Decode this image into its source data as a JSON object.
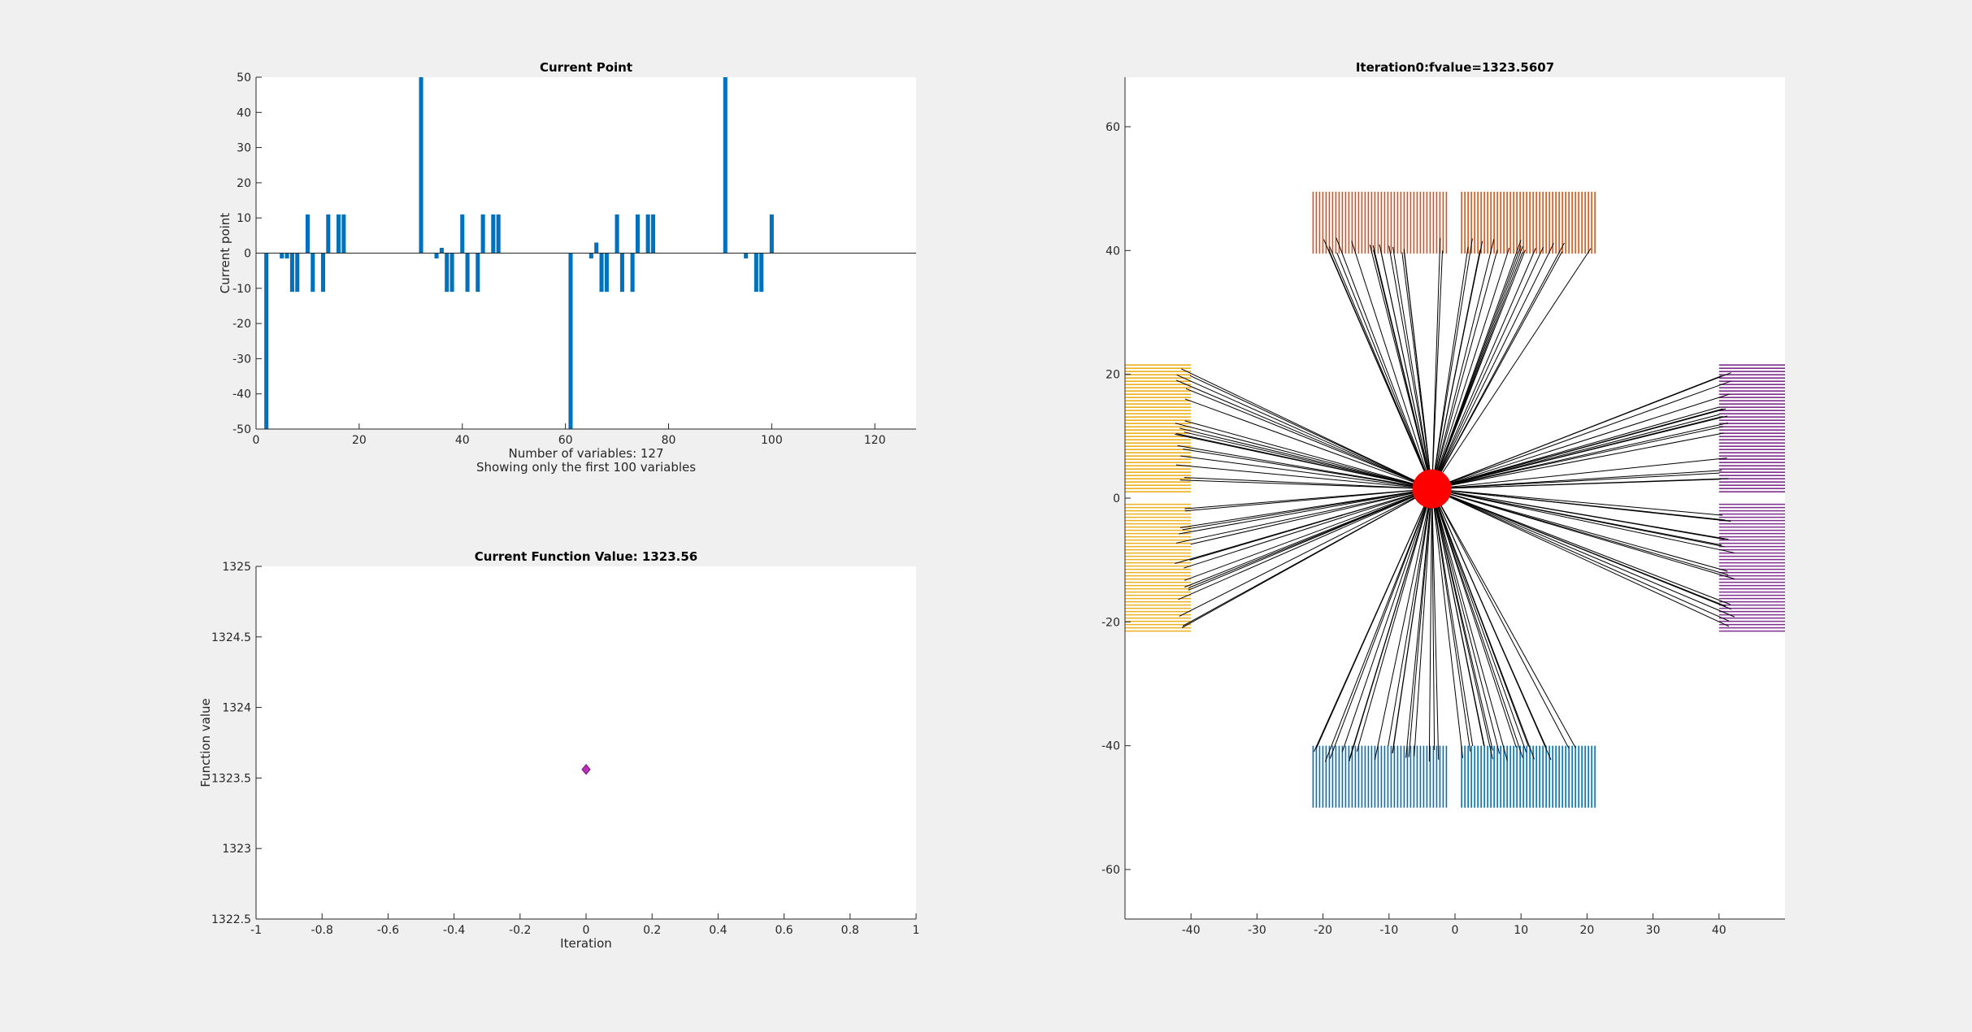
{
  "colors": {
    "bar": "#0072BD",
    "orange": "#D95319",
    "yellow": "#EDB120",
    "purple": "#7E2F8E",
    "blue": "#0072BD",
    "center": "#FF0000",
    "marker": "#BD2EBD"
  },
  "chart_data": [
    {
      "type": "bar",
      "title": "Current Point",
      "xlabel": "Number of variables: 127",
      "xlabel2": "Showing only the first 100 variables",
      "ylabel": "Current point",
      "xlim": [
        0,
        128
      ],
      "ylim": [
        -50,
        50
      ],
      "xticks": [
        0,
        20,
        40,
        60,
        80,
        100,
        120
      ],
      "yticks": [
        -50,
        -40,
        -30,
        -20,
        -10,
        0,
        10,
        20,
        30,
        40,
        50
      ],
      "x": [
        1,
        2,
        3,
        4,
        5,
        6,
        7,
        8,
        9,
        10,
        11,
        12,
        13,
        14,
        15,
        16,
        17,
        18,
        19,
        20,
        21,
        22,
        23,
        24,
        25,
        26,
        27,
        28,
        29,
        30,
        31,
        32,
        33,
        34,
        35,
        36,
        37,
        38,
        39,
        40,
        41,
        42,
        43,
        44,
        45,
        46,
        47,
        48,
        49,
        50,
        51,
        52,
        53,
        54,
        55,
        56,
        57,
        58,
        59,
        60,
        61,
        62,
        63,
        64,
        65,
        66,
        67,
        68,
        69,
        70,
        71,
        72,
        73,
        74,
        75,
        76,
        77,
        78,
        79,
        80,
        81,
        82,
        83,
        84,
        85,
        86,
        87,
        88,
        89,
        90,
        91,
        92,
        93,
        94,
        95,
        96,
        97,
        98,
        99,
        100
      ],
      "values": [
        0,
        -50,
        0,
        0,
        -1.5,
        -1.5,
        -11,
        -11,
        0,
        11,
        -11,
        0,
        -11,
        11,
        0,
        11,
        11,
        0,
        0,
        0,
        0,
        0,
        0,
        0,
        0,
        0,
        0,
        0,
        0,
        0,
        0,
        50,
        0,
        0,
        -1.5,
        1.5,
        -11,
        -11,
        0,
        11,
        -11,
        0,
        -11,
        11,
        0,
        11,
        11,
        0,
        0,
        0,
        0,
        0,
        0,
        0,
        0,
        0,
        0,
        0,
        0,
        0,
        -50,
        0,
        0,
        0,
        -1.5,
        3,
        -11,
        -11,
        0,
        11,
        -11,
        0,
        -11,
        11,
        0,
        11,
        11,
        0,
        0,
        0,
        0,
        0,
        0,
        0,
        0,
        0,
        0,
        0,
        0,
        0,
        50,
        0,
        0,
        0,
        -1.5,
        0,
        -11,
        -11,
        0,
        11
      ]
    },
    {
      "type": "line",
      "title": "Current Function Value: 1323.56",
      "xlabel": "Iteration",
      "ylabel": "Function value",
      "xlim": [
        -1,
        1
      ],
      "ylim": [
        1322.5,
        1325
      ],
      "xticks": [
        -1,
        -0.8,
        -0.6,
        -0.4,
        -0.2,
        0,
        0.2,
        0.4,
        0.6,
        0.8,
        1
      ],
      "yticks": [
        1322.5,
        1323,
        1323.5,
        1324,
        1324.5,
        1325
      ],
      "x": [
        0
      ],
      "values": [
        1323.5607
      ]
    },
    {
      "type": "scatter",
      "title": "Iteration0:fvalue=1323.5607",
      "xlim": [
        -50,
        50
      ],
      "ylim": [
        -68,
        68
      ],
      "xticks": [
        -40,
        -30,
        -20,
        -10,
        0,
        10,
        20,
        30,
        40
      ],
      "yticks": [
        -60,
        -40,
        -20,
        0,
        20,
        40,
        60
      ],
      "center": [
        -3.5,
        1.5
      ],
      "groups": [
        {
          "color": "orange",
          "x": [
            -21.5,
            -1
          ],
          "y": [
            39.5,
            49.5
          ],
          "orient": "vertical"
        },
        {
          "color": "orange",
          "x": [
            1,
            21.5
          ],
          "y": [
            39.5,
            49.5
          ],
          "orient": "vertical"
        },
        {
          "color": "blue",
          "x": [
            -21.5,
            -1
          ],
          "y": [
            -50,
            -40
          ],
          "orient": "vertical"
        },
        {
          "color": "blue",
          "x": [
            1,
            21.5
          ],
          "y": [
            -50,
            -40
          ],
          "orient": "vertical"
        },
        {
          "color": "yellow",
          "x": [
            -50,
            -40
          ],
          "y": [
            1,
            21.5
          ],
          "orient": "horizontal"
        },
        {
          "color": "yellow",
          "x": [
            -50,
            -40
          ],
          "y": [
            -21.5,
            -1
          ],
          "orient": "horizontal"
        },
        {
          "color": "purple",
          "x": [
            40,
            50
          ],
          "y": [
            1,
            21.5
          ],
          "orient": "horizontal"
        },
        {
          "color": "purple",
          "x": [
            40,
            50
          ],
          "y": [
            -21.5,
            -1
          ],
          "orient": "horizontal"
        }
      ]
    }
  ]
}
